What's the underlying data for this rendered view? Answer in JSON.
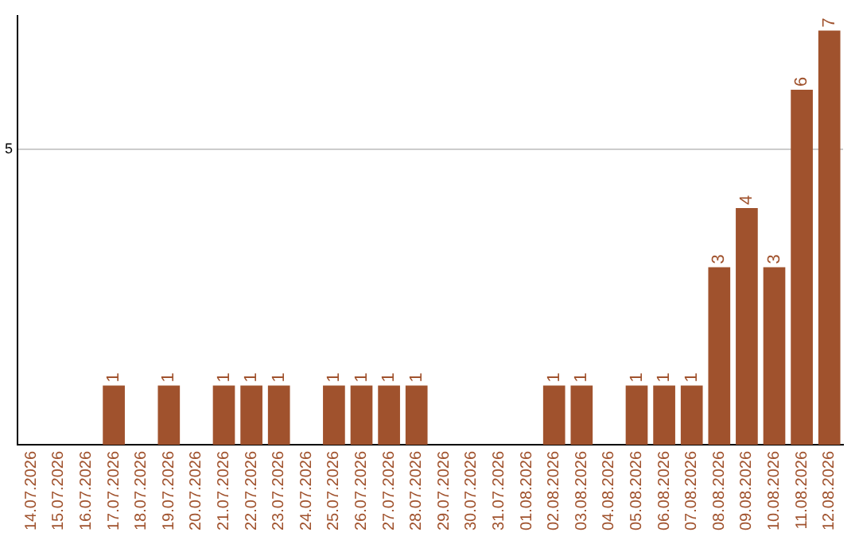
{
  "chart_data": {
    "type": "bar",
    "categories": [
      "14.07.2026",
      "15.07.2026",
      "16.07.2026",
      "17.07.2026",
      "18.07.2026",
      "19.07.2026",
      "20.07.2026",
      "21.07.2026",
      "22.07.2026",
      "23.07.2026",
      "24.07.2026",
      "25.07.2026",
      "26.07.2026",
      "27.07.2026",
      "28.07.2026",
      "29.07.2026",
      "30.07.2026",
      "31.07.2026",
      "01.08.2026",
      "02.08.2026",
      "03.08.2026",
      "04.08.2026",
      "05.08.2026",
      "06.08.2026",
      "07.08.2026",
      "08.08.2026",
      "09.08.2026",
      "10.08.2026",
      "11.08.2026",
      "12.08.2026"
    ],
    "values": [
      0,
      0,
      0,
      1,
      0,
      1,
      0,
      1,
      1,
      1,
      0,
      1,
      1,
      1,
      1,
      0,
      0,
      0,
      0,
      1,
      1,
      0,
      1,
      1,
      1,
      3,
      4,
      3,
      6,
      7
    ],
    "value_labels": [
      null,
      null,
      null,
      "1",
      null,
      "1",
      null,
      "1",
      "1",
      "1",
      null,
      "1",
      "1",
      "1",
      "1",
      null,
      null,
      null,
      null,
      "1",
      "1",
      null,
      "1",
      "1",
      "1",
      "3",
      "4",
      "3",
      "6",
      "7"
    ],
    "color": "#a0522d",
    "ylim": [
      0,
      7.25
    ],
    "yticks": [
      5
    ],
    "grid": "y"
  }
}
